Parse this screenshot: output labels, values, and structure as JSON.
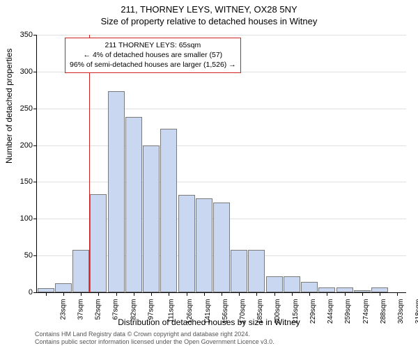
{
  "title": "211, THORNEY LEYS, WITNEY, OX28 5NY",
  "subtitle": "Size of property relative to detached houses in Witney",
  "yaxis_label": "Number of detached properties",
  "xaxis_label": "Distribution of detached houses by size in Witney",
  "chart": {
    "type": "histogram",
    "ylim": [
      0,
      350
    ],
    "ytick_step": 50,
    "background_color": "#ffffff",
    "grid_color": "#e0e0e0",
    "axis_color": "#000000",
    "bar_fill_color": "#c9d7f0",
    "bar_border_color": "#7a7a7a",
    "bar_width": 0.95,
    "bins": [
      {
        "label": "23sqm",
        "value": 6
      },
      {
        "label": "37sqm",
        "value": 12
      },
      {
        "label": "52sqm",
        "value": 58
      },
      {
        "label": "67sqm",
        "value": 133
      },
      {
        "label": "82sqm",
        "value": 273
      },
      {
        "label": "97sqm",
        "value": 238
      },
      {
        "label": "111sqm",
        "value": 200
      },
      {
        "label": "126sqm",
        "value": 222
      },
      {
        "label": "141sqm",
        "value": 132
      },
      {
        "label": "156sqm",
        "value": 128
      },
      {
        "label": "170sqm",
        "value": 122
      },
      {
        "label": "185sqm",
        "value": 58
      },
      {
        "label": "200sqm",
        "value": 58
      },
      {
        "label": "215sqm",
        "value": 22
      },
      {
        "label": "229sqm",
        "value": 22
      },
      {
        "label": "244sqm",
        "value": 14
      },
      {
        "label": "259sqm",
        "value": 7
      },
      {
        "label": "274sqm",
        "value": 7
      },
      {
        "label": "288sqm",
        "value": 3
      },
      {
        "label": "303sqm",
        "value": 7
      },
      {
        "label": "318sqm",
        "value": 0
      }
    ],
    "marker": {
      "position_bin_index": 3,
      "color": "#d02020",
      "line_width": 1
    }
  },
  "callout": {
    "line1": "211 THORNEY LEYS: 65sqm",
    "line2": "← 4% of detached houses are smaller (57)",
    "line3": "96% of semi-detached houses are larger (1,526) →",
    "border_color": "#d02020",
    "background_color": "#ffffff",
    "font_size": 10.5
  },
  "attribution": {
    "line1": "Contains HM Land Registry data © Crown copyright and database right 2024.",
    "line2": "Contains public sector information licensed under the Open Government Licence v3.0."
  }
}
